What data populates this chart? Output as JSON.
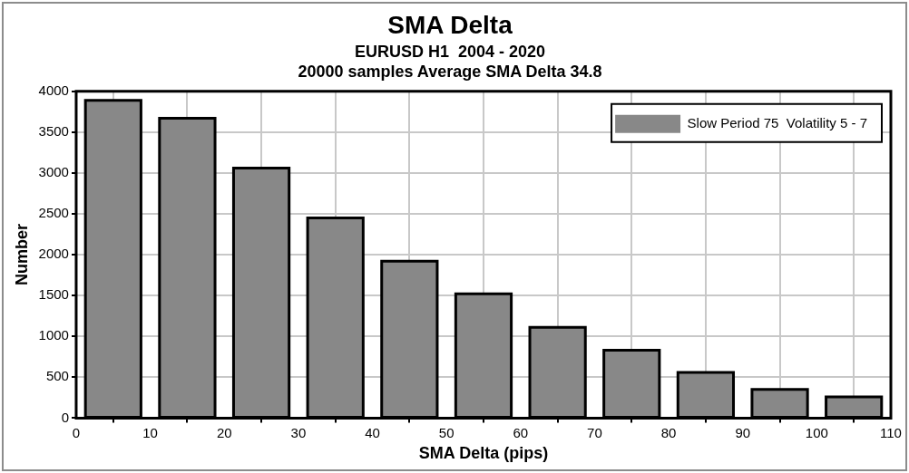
{
  "chart_data": {
    "type": "bar",
    "title": "SMA Delta",
    "subtitle": "EURUSD H1  2004 - 2020",
    "annotations": [
      "20000 samples Average SMA Delta 34.8"
    ],
    "xlabel": "SMA Delta (pips)",
    "ylabel": "Number",
    "x": [
      5,
      15,
      25,
      35,
      45,
      55,
      65,
      75,
      85,
      95,
      105
    ],
    "series": [
      {
        "name": "Slow Period 75  Volatility 5 - 7",
        "color": "#888888",
        "values": [
          3890,
          3670,
          3060,
          2450,
          1920,
          1520,
          1110,
          830,
          560,
          350,
          260
        ]
      }
    ],
    "xlim": [
      0,
      110
    ],
    "xticks": [
      0,
      10,
      20,
      30,
      40,
      50,
      60,
      70,
      80,
      90,
      100,
      110
    ],
    "ylim": [
      0,
      4000
    ],
    "yticks": [
      0,
      500,
      1000,
      1500,
      2000,
      2500,
      3000,
      3500,
      4000
    ],
    "grid": true,
    "legend": "top right"
  }
}
